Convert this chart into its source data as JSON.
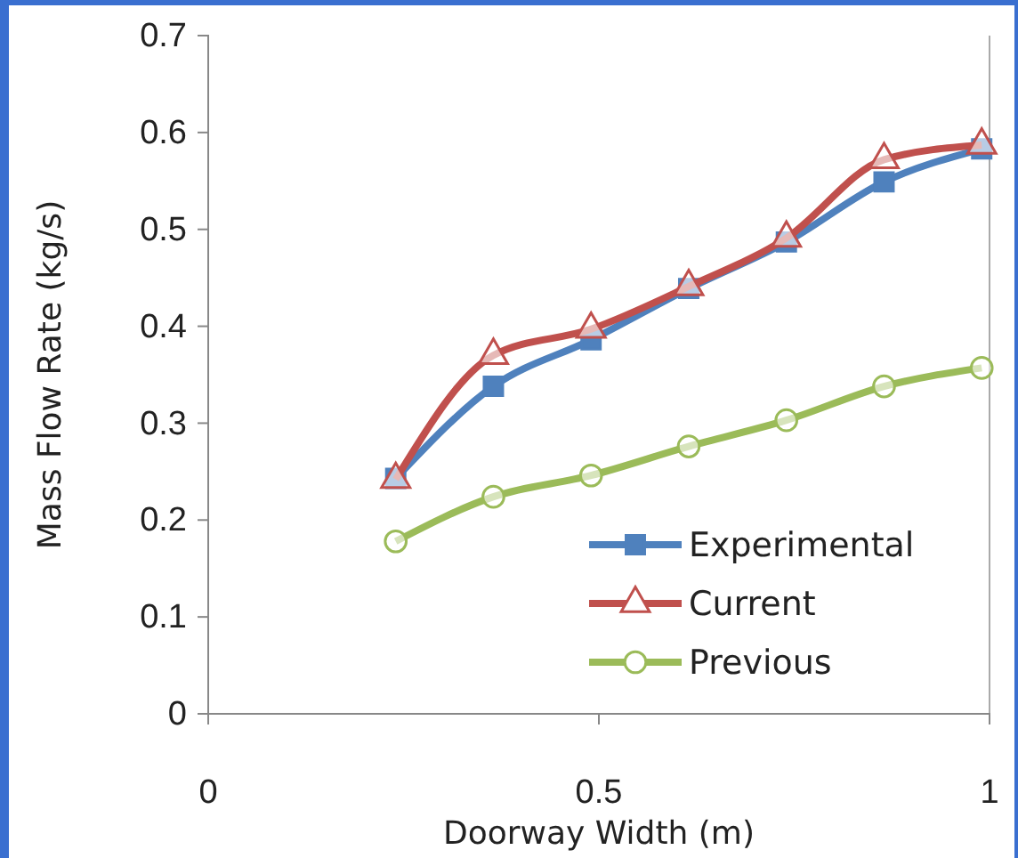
{
  "chart_data": {
    "type": "line",
    "xlabel": "Doorway Width (m)",
    "ylabel": "Mass Flow Rate (kg/s)",
    "x": [
      0.24,
      0.365,
      0.49,
      0.615,
      0.74,
      0.865,
      0.99
    ],
    "xlim": [
      0,
      1
    ],
    "xticks": [
      0,
      0.5,
      1
    ],
    "ylim": [
      0,
      0.7
    ],
    "yticks": [
      0,
      0.1,
      0.2,
      0.3,
      0.4,
      0.5,
      0.6,
      0.7
    ],
    "series": [
      {
        "name": "Experimental",
        "color": "#4f81bd",
        "marker": "square",
        "values": [
          0.243,
          0.338,
          0.386,
          0.439,
          0.487,
          0.549,
          0.583
        ]
      },
      {
        "name": "Current",
        "color": "#c0504d",
        "marker": "triangle",
        "values": [
          0.242,
          0.37,
          0.397,
          0.441,
          0.491,
          0.572,
          0.587
        ]
      },
      {
        "name": "Previous",
        "color": "#9bbb59",
        "marker": "circle",
        "values": [
          0.178,
          0.224,
          0.246,
          0.276,
          0.303,
          0.338,
          0.357
        ]
      }
    ],
    "grid": false,
    "legend": "bottom right",
    "line_style": "solid"
  }
}
